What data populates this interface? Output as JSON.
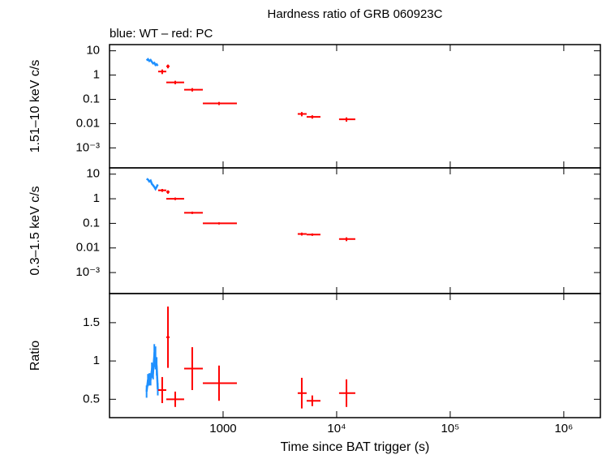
{
  "chart_data": [
    {
      "type": "errorbar",
      "title": "Hardness ratio of GRB 060923C",
      "subtitle": "blue: WT – red: PC",
      "ylabel": "1.51–10 keV c/s",
      "log_x": true,
      "log_y": true,
      "xlim": [
        100,
        2100000
      ],
      "ylim": [
        0.00015,
        18
      ],
      "yticks": [
        {
          "value": 0.001,
          "label": "10⁻³"
        },
        0.01,
        0.1,
        1,
        10
      ],
      "series": [
        {
          "color": "#1e90ff",
          "x": [
            212,
            218,
            224,
            230,
            236,
            242,
            248,
            254,
            260,
            266
          ],
          "values": [
            4.0,
            4.5,
            3.8,
            4.2,
            3.5,
            3.0,
            3.2,
            2.6,
            2.8,
            2.4
          ]
        },
        {
          "color": "#ff0000",
          "x": [
            291,
            327,
            379,
            535,
            921,
            4930,
            6100,
            12200
          ],
          "xmin": [
            268,
            316,
            316,
            454,
            663,
            4540,
            5440,
            10500
          ],
          "xmax": [
            316,
            338,
            454,
            663,
            1323,
            5440,
            7200,
            14600
          ],
          "values": [
            1.4,
            2.3,
            0.5,
            0.25,
            0.068,
            0.025,
            0.019,
            0.015
          ],
          "yerr": [
            0.3,
            0.4,
            0.08,
            0.04,
            0.01,
            0.005,
            0.003,
            0.003
          ]
        }
      ]
    },
    {
      "type": "errorbar",
      "ylabel": "0.3–1.5 keV c/s",
      "log_x": true,
      "log_y": true,
      "xlim": [
        100,
        2100000
      ],
      "ylim": [
        0.00014,
        18
      ],
      "yticks": [
        {
          "value": 0.001,
          "label": "10⁻³"
        },
        0.01,
        0.1,
        1,
        10
      ],
      "series": [
        {
          "color": "#1e90ff",
          "x": [
            212,
            218,
            224,
            230,
            236,
            242,
            248,
            254,
            260,
            266
          ],
          "values": [
            6.5,
            6.0,
            5.0,
            5.5,
            4.0,
            3.5,
            3.0,
            2.5,
            3.0,
            3.8
          ]
        },
        {
          "color": "#ff0000",
          "x": [
            291,
            327,
            379,
            535,
            921,
            4930,
            6100,
            12200
          ],
          "xmin": [
            268,
            316,
            316,
            454,
            663,
            4540,
            5440,
            10500
          ],
          "xmax": [
            316,
            338,
            454,
            663,
            1323,
            5440,
            7200,
            14600
          ],
          "values": [
            2.2,
            1.9,
            1.0,
            0.27,
            0.1,
            0.037,
            0.035,
            0.023
          ],
          "yerr": [
            0.3,
            0.3,
            0.12,
            0.03,
            0.01,
            0.005,
            0.004,
            0.004
          ]
        }
      ]
    },
    {
      "type": "errorbar",
      "ylabel": "Ratio",
      "xlabel": "Time since BAT trigger (s)",
      "log_x": true,
      "log_y": false,
      "xlim": [
        100,
        2100000
      ],
      "ylim": [
        0.26,
        1.88
      ],
      "xticks": [
        1000,
        {
          "value": 10000,
          "label": "10⁴"
        },
        {
          "value": 100000,
          "label": "10⁵"
        },
        {
          "value": 1000000,
          "label": "10⁶"
        }
      ],
      "yticks": [
        0.5,
        1,
        1.5
      ],
      "series": [
        {
          "color": "#1e90ff",
          "x": [
            212,
            218,
            224,
            230,
            236,
            242,
            248,
            254,
            260,
            266
          ],
          "values": [
            0.6,
            0.75,
            0.76,
            0.76,
            0.88,
            0.86,
            1.07,
            1.04,
            0.93,
            0.63
          ],
          "yerr": [
            0.08,
            0.08,
            0.08,
            0.08,
            0.1,
            0.1,
            0.15,
            0.15,
            0.12,
            0.08
          ]
        },
        {
          "color": "#ff0000",
          "x": [
            291,
            327,
            379,
            535,
            921,
            4930,
            6100,
            12200
          ],
          "xmin": [
            268,
            316,
            316,
            454,
            663,
            4540,
            5440,
            10500
          ],
          "xmax": [
            316,
            338,
            454,
            663,
            1323,
            5440,
            7200,
            14600
          ],
          "values": [
            0.62,
            1.31,
            0.5,
            0.9,
            0.71,
            0.58,
            0.48,
            0.58
          ],
          "yerr": [
            0.17,
            0.4,
            0.1,
            0.28,
            0.23,
            0.2,
            0.07,
            0.18
          ]
        }
      ]
    }
  ]
}
